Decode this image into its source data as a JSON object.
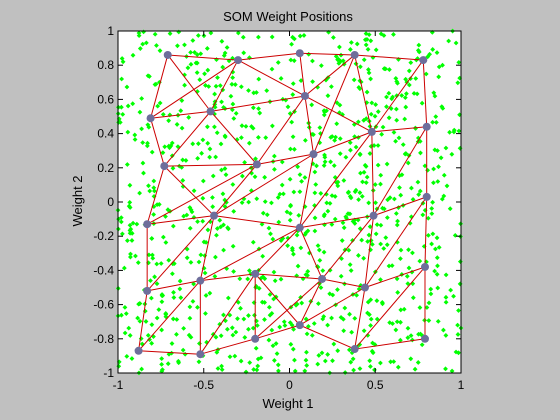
{
  "chart_data": {
    "type": "scatter",
    "title": "SOM Weight Positions",
    "xlabel": "Weight 1",
    "ylabel": "Weight 2",
    "xlim": [
      -1,
      1
    ],
    "ylim": [
      -1,
      1
    ],
    "xticks": [
      "-1",
      "-0.5",
      "0",
      "0.5",
      "1"
    ],
    "yticks": [
      "-1",
      "-0.8",
      "-0.6",
      "-0.4",
      "-0.2",
      "0",
      "0.2",
      "0.4",
      "0.6",
      "0.8",
      "1"
    ],
    "grid": false,
    "inputs": {
      "marker": "diamond",
      "color": "#00ff00",
      "count": 1000,
      "distribution": "uniform over [-1, 1] x [-1, 1]"
    },
    "neurons": {
      "marker_color": "#6e6e9b",
      "link_color": "#cc0000",
      "points": [
        [
          -0.88,
          -0.87
        ],
        [
          -0.52,
          -0.89
        ],
        [
          -0.2,
          -0.8
        ],
        [
          0.06,
          -0.72
        ],
        [
          0.38,
          -0.86
        ],
        [
          0.79,
          -0.8
        ],
        [
          -0.83,
          -0.52
        ],
        [
          -0.52,
          -0.46
        ],
        [
          -0.2,
          -0.42
        ],
        [
          0.19,
          -0.45
        ],
        [
          0.44,
          -0.5
        ],
        [
          0.79,
          -0.38
        ],
        [
          -0.83,
          -0.13
        ],
        [
          -0.44,
          -0.08
        ],
        [
          0.06,
          -0.15
        ],
        [
          0.49,
          -0.08
        ],
        [
          0.8,
          0.03
        ],
        [
          -0.73,
          0.21
        ],
        [
          -0.19,
          0.22
        ],
        [
          0.14,
          0.28
        ],
        [
          0.48,
          0.41
        ],
        [
          0.8,
          0.44
        ],
        [
          -0.81,
          0.49
        ],
        [
          -0.46,
          0.53
        ],
        [
          0.09,
          0.62
        ],
        [
          -0.71,
          0.86
        ],
        [
          -0.3,
          0.83
        ],
        [
          0.06,
          0.87
        ],
        [
          0.38,
          0.86
        ],
        [
          0.78,
          0.83
        ]
      ],
      "links": [
        [
          0,
          1
        ],
        [
          1,
          2
        ],
        [
          2,
          3
        ],
        [
          3,
          4
        ],
        [
          4,
          5
        ],
        [
          6,
          7
        ],
        [
          7,
          8
        ],
        [
          8,
          9
        ],
        [
          9,
          10
        ],
        [
          10,
          11
        ],
        [
          12,
          13
        ],
        [
          13,
          14
        ],
        [
          14,
          15
        ],
        [
          15,
          16
        ],
        [
          17,
          18
        ],
        [
          18,
          19
        ],
        [
          19,
          20
        ],
        [
          20,
          21
        ],
        [
          22,
          23
        ],
        [
          23,
          24
        ],
        [
          24,
          20
        ],
        [
          25,
          26
        ],
        [
          26,
          27
        ],
        [
          27,
          28
        ],
        [
          28,
          29
        ],
        [
          0,
          6
        ],
        [
          6,
          12
        ],
        [
          12,
          17
        ],
        [
          17,
          22
        ],
        [
          22,
          25
        ],
        [
          1,
          7
        ],
        [
          7,
          13
        ],
        [
          13,
          18
        ],
        [
          18,
          23
        ],
        [
          23,
          25
        ],
        [
          2,
          8
        ],
        [
          8,
          14
        ],
        [
          14,
          19
        ],
        [
          19,
          24
        ],
        [
          24,
          27
        ],
        [
          3,
          9
        ],
        [
          9,
          14
        ],
        [
          4,
          10
        ],
        [
          10,
          15
        ],
        [
          15,
          20
        ],
        [
          20,
          28
        ],
        [
          5,
          11
        ],
        [
          11,
          16
        ],
        [
          16,
          21
        ],
        [
          21,
          29
        ],
        [
          0,
          7
        ],
        [
          1,
          8
        ],
        [
          2,
          9
        ],
        [
          3,
          10
        ],
        [
          4,
          11
        ],
        [
          6,
          13
        ],
        [
          7,
          14
        ],
        [
          9,
          15
        ],
        [
          10,
          16
        ],
        [
          12,
          18
        ],
        [
          13,
          19
        ],
        [
          14,
          20
        ],
        [
          15,
          21
        ],
        [
          17,
          23
        ],
        [
          18,
          24
        ],
        [
          19,
          28
        ],
        [
          20,
          29
        ],
        [
          22,
          26
        ],
        [
          23,
          26
        ],
        [
          24,
          28
        ],
        [
          26,
          24
        ],
        [
          8,
          3
        ],
        [
          17,
          13
        ]
      ]
    }
  }
}
